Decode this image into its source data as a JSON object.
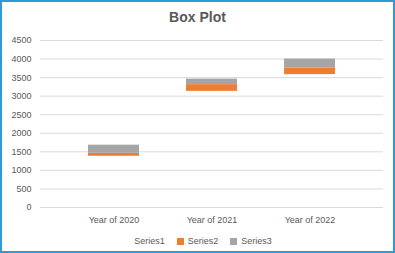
{
  "chart_data": {
    "type": "bar",
    "title": "Box Plot",
    "categories": [
      "Year of 2020",
      "Year of 2021",
      "Year of 2022"
    ],
    "series": [
      {
        "name": "Series1",
        "color": "none",
        "values": [
          1380,
          3130,
          3580
        ]
      },
      {
        "name": "Series2",
        "color": "#ed7d31",
        "values": [
          80,
          180,
          180
        ]
      },
      {
        "name": "Series3",
        "color": "#a5a5a5",
        "values": [
          220,
          150,
          240
        ]
      }
    ],
    "stacked": true,
    "ylim": [
      0,
      4500
    ],
    "yticks": [
      0,
      500,
      1000,
      1500,
      2000,
      2500,
      3000,
      3500,
      4000,
      4500
    ],
    "grid": true,
    "legend": "bottom"
  }
}
